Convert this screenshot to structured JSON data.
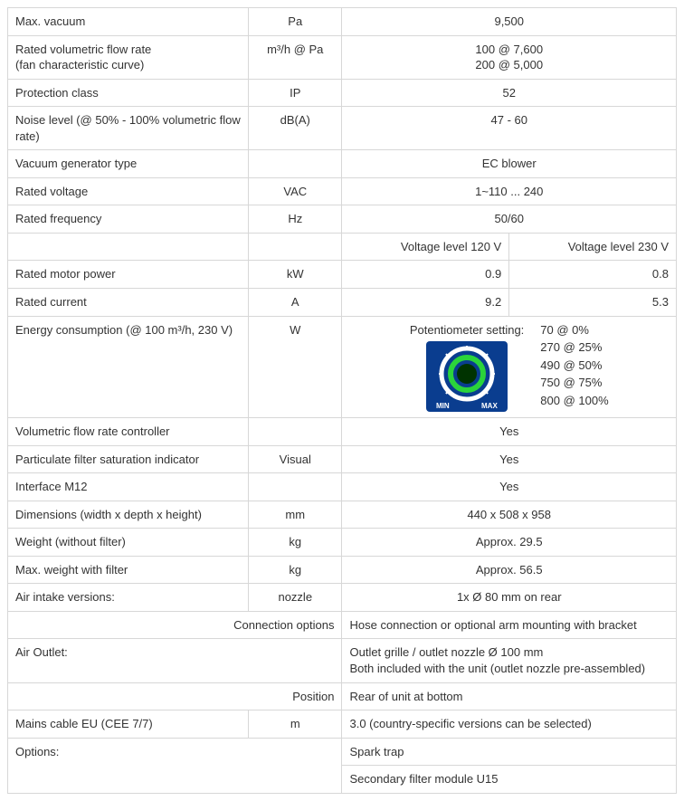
{
  "rows": {
    "max_vacuum": {
      "label": "Max. vacuum",
      "unit": "Pa",
      "value": "9,500"
    },
    "flow_rate": {
      "label": "Rated volumetric flow rate\n(fan characteristic curve)",
      "unit": "m³/h @ Pa",
      "value_line1": "100 @ 7,600",
      "value_line2": "200 @ 5,000"
    },
    "protection": {
      "label": "Protection class",
      "unit": "IP",
      "value": "52"
    },
    "noise": {
      "label": "Noise level (@ 50% - 100% volumetric flow rate)",
      "unit": "dB(A)",
      "value": "47 - 60"
    },
    "gen_type": {
      "label": "Vacuum generator type",
      "value": "EC blower"
    },
    "voltage": {
      "label": "Rated voltage",
      "unit": "VAC",
      "value": "1~110 ... 240"
    },
    "frequency": {
      "label": "Rated frequency",
      "unit": "Hz",
      "value": "50/60"
    },
    "voltage_headers": {
      "col_a": "Voltage level 120 V",
      "col_b": "Voltage level 230 V"
    },
    "motor_power": {
      "label": "Rated motor power",
      "unit": "kW",
      "val_a": "0.9",
      "val_b": "0.8"
    },
    "current": {
      "label": "Rated current",
      "unit": "A",
      "val_a": "9.2",
      "val_b": "5.3"
    },
    "energy": {
      "label": "Energy consumption (@ 100 m³/h, 230 V)",
      "unit": "W",
      "pot_label": "Potentiometer setting:",
      "values": [
        "70 @ 0%",
        "270 @ 25%",
        "490 @ 50%",
        "750 @ 75%",
        "800 @ 100%"
      ],
      "dial": {
        "bg": "#0a3d8f",
        "outer_ring": "#ffffff",
        "inner_ring": "#2bd43b",
        "center": "#003300",
        "label_min": "MIN",
        "label_max": "MAX",
        "tick_color": "#ffffff"
      }
    },
    "flow_controller": {
      "label": "Volumetric flow rate controller",
      "value": "Yes"
    },
    "filter_indicator": {
      "label": "Particulate filter saturation indicator",
      "unit": "Visual",
      "value": "Yes"
    },
    "interface": {
      "label": "Interface M12",
      "value": "Yes"
    },
    "dimensions": {
      "label": "Dimensions (width x depth x height)",
      "unit": "mm",
      "value": "440 x 508 x 958"
    },
    "weight_no_filter": {
      "label": "Weight (without filter)",
      "unit": "kg",
      "value": "Approx. 29.5"
    },
    "weight_filter": {
      "label": "Max. weight with filter",
      "unit": "kg",
      "value": "Approx. 56.5"
    },
    "air_intake": {
      "label": "Air intake versions:",
      "unit": "nozzle",
      "value": "1x Ø 80 mm on rear"
    },
    "connection_opts": {
      "label": "Connection options",
      "value": "Hose connection or optional arm mounting with bracket"
    },
    "air_outlet": {
      "label": "Air Outlet:",
      "value_line1": "Outlet grille / outlet nozzle Ø 100 mm",
      "value_line2": "Both included with the unit (outlet nozzle pre-assembled)"
    },
    "position": {
      "label": "Position",
      "value": "Rear of unit at bottom"
    },
    "mains_cable": {
      "label": "Mains cable EU (CEE 7/7)",
      "unit": "m",
      "value": "3.0 (country-specific versions can be selected)"
    },
    "options": {
      "label": "Options:",
      "value1": "Spark trap",
      "value2": "Secondary filter module U15"
    }
  }
}
